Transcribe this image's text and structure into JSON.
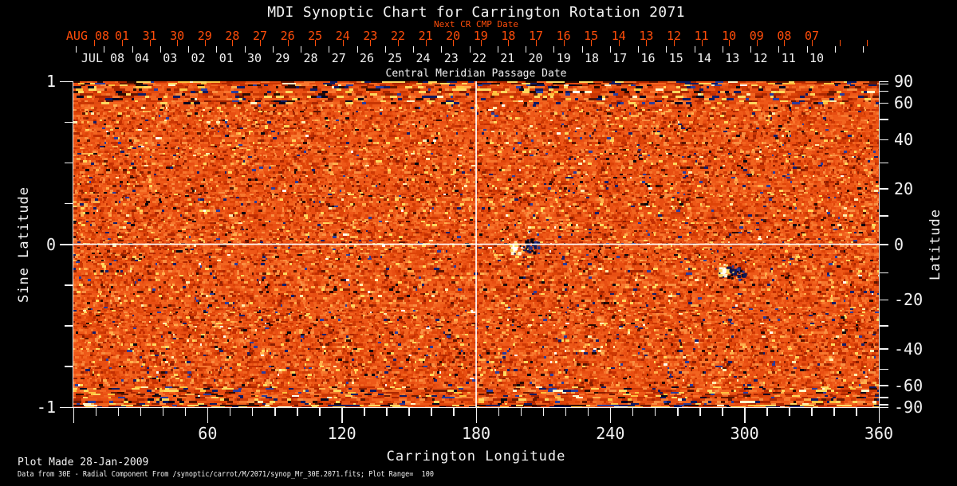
{
  "title": "MDI Synoptic Chart for Carrington Rotation 2071",
  "colors": {
    "background": "#000000",
    "text_white": "#f2f2f2",
    "accent_red": "#ff4d0a",
    "map_base_orange": "#ee5818",
    "map_negative_navy": "#141d68",
    "map_positive_white": "#fffdf0",
    "map_yellow": "#ffd85e"
  },
  "top_axis": {
    "next_cr_label": "Next CR CMP Date",
    "next_cr_dates": [
      "AUG 08",
      "01",
      "31",
      "30",
      "29",
      "28",
      "27",
      "26",
      "25",
      "24",
      "23",
      "22",
      "21",
      "20",
      "19",
      "18",
      "17",
      "16",
      "15",
      "14",
      "13",
      "12",
      "11",
      "10",
      "09",
      "08",
      "07"
    ],
    "cmp_dates": [
      "JUL 08",
      "04",
      "03",
      "02",
      "01",
      "30",
      "29",
      "28",
      "27",
      "26",
      "25",
      "24",
      "23",
      "22",
      "21",
      "20",
      "19",
      "18",
      "17",
      "16",
      "15",
      "14",
      "13",
      "12",
      "11",
      "10"
    ],
    "cmp_label": "Central Meridian Passage Date"
  },
  "left_axis": {
    "title": "Sine Latitude",
    "tick_values": [
      1,
      0,
      -1
    ],
    "tick_labels": [
      "1",
      "0",
      "-1"
    ],
    "minor_step": 0.25
  },
  "right_axis": {
    "title": "Latitude",
    "tick_values": [
      90,
      60,
      40,
      20,
      0,
      -20,
      -40,
      -60,
      -90
    ],
    "tick_labels": [
      "90",
      "60",
      "40",
      "20",
      "0",
      "-20",
      "-40",
      "-60",
      "-90"
    ],
    "minor_step_deg": 10
  },
  "bottom_axis": {
    "title": "Carrington Longitude",
    "tick_values": [
      60,
      120,
      180,
      240,
      300,
      360
    ],
    "tick_labels": [
      "60",
      "120",
      "180",
      "240",
      "300",
      "360"
    ],
    "minor_step_deg": 10
  },
  "footer": {
    "line1": "Plot Made 28-Jan-2009",
    "line2": "Data from 30E - Radial Component From /synoptic/carrot/M/2071/synop_Mr_30E.2071.fits; Plot Range=  100"
  },
  "chart_data": {
    "type": "heatmap",
    "title": "MDI Synoptic Chart for Carrington Rotation 2071",
    "xlabel": "Carrington Longitude",
    "ylabel": "Sine Latitude",
    "ylabel_right": "Latitude",
    "xlim": [
      0,
      360
    ],
    "ylim": [
      -1,
      1
    ],
    "value_range_gauss": [
      -100,
      100
    ],
    "x_major_ticks": [
      60,
      120,
      180,
      240,
      300,
      360
    ],
    "x_minor_step_deg": 10,
    "y_left_major_ticks": [
      1,
      0,
      -1
    ],
    "y_left_minor_step": 0.25,
    "y_right_tick_labels_deg": [
      90,
      60,
      40,
      20,
      0,
      -20,
      -40,
      -60,
      -90
    ],
    "y_right_minor_step_deg": 10,
    "reference_lines": {
      "vertical_longitude": 180,
      "horizontal_sine_latitude": 0
    },
    "next_cr_cmp_dates": [
      "AUG 08",
      "01",
      "31",
      "30",
      "29",
      "28",
      "27",
      "26",
      "25",
      "24",
      "23",
      "22",
      "21",
      "20",
      "19",
      "18",
      "17",
      "16",
      "15",
      "14",
      "13",
      "12",
      "11",
      "10",
      "09",
      "08",
      "07"
    ],
    "cmp_dates": [
      "JUL 08",
      "04",
      "03",
      "02",
      "01",
      "30",
      "29",
      "28",
      "27",
      "26",
      "25",
      "24",
      "23",
      "22",
      "21",
      "20",
      "19",
      "18",
      "17",
      "16",
      "15",
      "14",
      "13",
      "12",
      "11",
      "10"
    ],
    "features": [
      {
        "name": "active-region-A",
        "carrington_longitude": 197,
        "latitude_deg": -1,
        "description": "bright white/yellow positive-polarity patch with adjacent dark navy negative-polarity cluster near the equator"
      },
      {
        "name": "active-region-B",
        "carrington_longitude": 290,
        "latitude_deg": -9,
        "description": "compact white/yellow positive patch with dark navy negative patch to its right"
      }
    ],
    "description": "Noisy orange-red full-disk radial magnetogram synoptic map; white/yellow = positive field, dark navy/black = negative field; horizontal streaked noise bands at polar edges"
  }
}
